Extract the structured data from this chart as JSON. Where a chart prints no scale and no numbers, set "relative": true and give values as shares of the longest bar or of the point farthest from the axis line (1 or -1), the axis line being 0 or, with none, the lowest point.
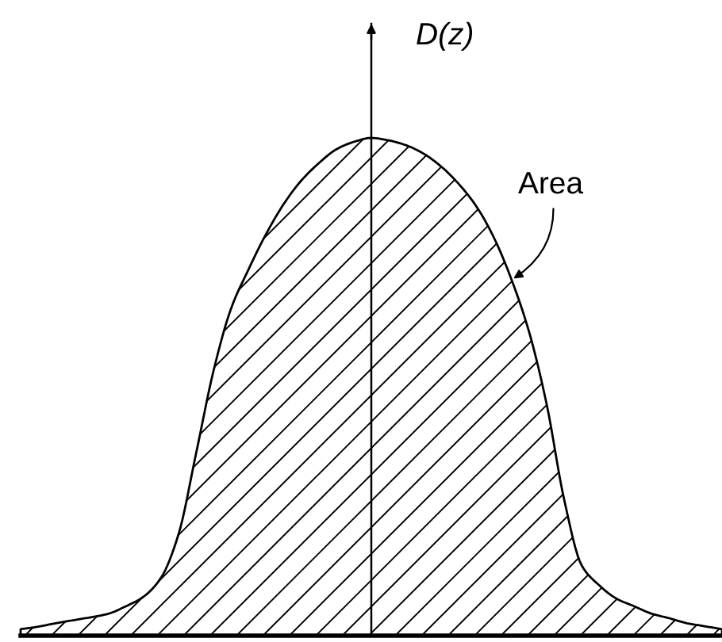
{
  "chart_data": {
    "type": "area",
    "ylabel": "D(z)",
    "relative": true,
    "tick_labels": false,
    "categories": [
      null,
      null,
      null,
      null,
      null,
      null,
      null,
      null,
      null,
      null,
      null,
      null,
      null,
      null,
      null,
      null,
      null,
      null,
      null,
      null,
      null,
      null,
      null,
      null,
      null,
      null,
      null,
      null,
      null,
      null,
      null,
      null,
      null,
      null,
      null,
      null,
      null,
      null,
      null,
      null,
      null
    ],
    "series": [
      {
        "color": "#000000",
        "values": [
          0.013,
          0.018,
          0.025,
          0.031,
          0.037,
          0.044,
          0.059,
          0.078,
          0.116,
          0.203,
          0.365,
          0.532,
          0.657,
          0.736,
          0.807,
          0.867,
          0.914,
          0.949,
          0.977,
          0.992,
          1.0,
          0.995,
          0.985,
          0.968,
          0.942,
          0.907,
          0.862,
          0.799,
          0.715,
          0.61,
          0.465,
          0.273,
          0.141,
          0.101,
          0.074,
          0.059,
          0.044,
          0.035,
          0.025,
          0.019,
          0.013
        ]
      }
    ],
    "annotations": [
      "Area"
    ]
  }
}
